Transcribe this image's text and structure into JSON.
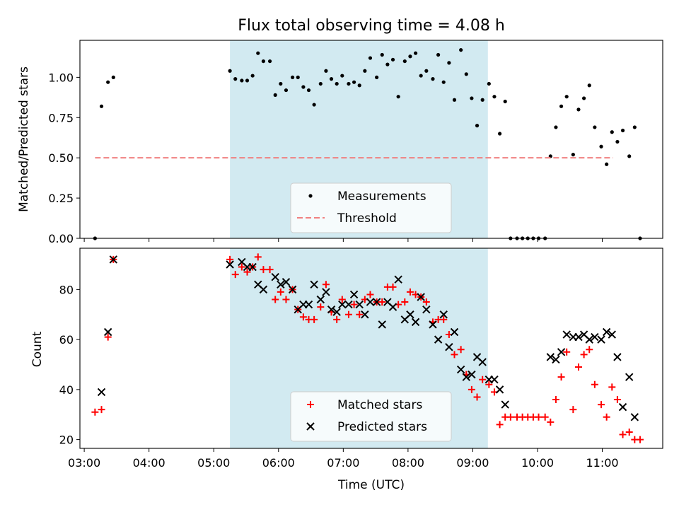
{
  "chart_data": [
    {
      "type": "scatter",
      "title": "Flux total observing time = 4.08 h",
      "xlabel": "",
      "ylabel": "Matched/Predicted stars",
      "ylim": [
        0.0,
        1.23
      ],
      "yticks": [
        "0.00",
        "0.25",
        "0.50",
        "0.75",
        "1.00"
      ],
      "shaded_span": {
        "start": "05:15",
        "end": "09:14",
        "color": "#add8e6"
      },
      "legend": {
        "position": "lower center",
        "entries": [
          "Measurements",
          "Threshold"
        ]
      },
      "series": [
        {
          "name": "Measurements",
          "marker": "dot",
          "color": "#000000",
          "points": [
            [
              "03:10",
              0.0
            ],
            [
              "03:16",
              0.82
            ],
            [
              "03:22",
              0.97
            ],
            [
              "03:27",
              1.0
            ],
            [
              "05:15",
              1.04
            ],
            [
              "05:20",
              0.99
            ],
            [
              "05:26",
              0.98
            ],
            [
              "05:31",
              0.98
            ],
            [
              "05:36",
              1.01
            ],
            [
              "05:41",
              1.15
            ],
            [
              "05:46",
              1.1
            ],
            [
              "05:52",
              1.1
            ],
            [
              "05:57",
              0.89
            ],
            [
              "06:02",
              0.96
            ],
            [
              "06:07",
              0.92
            ],
            [
              "06:13",
              1.0
            ],
            [
              "06:18",
              1.0
            ],
            [
              "06:23",
              0.94
            ],
            [
              "06:28",
              0.92
            ],
            [
              "06:33",
              0.83
            ],
            [
              "06:39",
              0.96
            ],
            [
              "06:44",
              1.04
            ],
            [
              "06:49",
              0.99
            ],
            [
              "06:54",
              0.96
            ],
            [
              "06:59",
              1.01
            ],
            [
              "07:05",
              0.96
            ],
            [
              "07:10",
              0.97
            ],
            [
              "07:15",
              0.95
            ],
            [
              "07:20",
              1.04
            ],
            [
              "07:25",
              1.12
            ],
            [
              "07:31",
              1.0
            ],
            [
              "07:36",
              1.14
            ],
            [
              "07:41",
              1.08
            ],
            [
              "07:46",
              1.11
            ],
            [
              "07:51",
              0.88
            ],
            [
              "07:57",
              1.1
            ],
            [
              "08:02",
              1.13
            ],
            [
              "08:07",
              1.15
            ],
            [
              "08:12",
              1.01
            ],
            [
              "08:17",
              1.04
            ],
            [
              "08:23",
              0.99
            ],
            [
              "08:28",
              1.14
            ],
            [
              "08:33",
              0.97
            ],
            [
              "08:38",
              1.09
            ],
            [
              "08:43",
              0.86
            ],
            [
              "08:49",
              1.17
            ],
            [
              "08:54",
              1.02
            ],
            [
              "08:59",
              0.87
            ],
            [
              "09:04",
              0.7
            ],
            [
              "09:09",
              0.86
            ],
            [
              "09:15",
              0.96
            ],
            [
              "09:20",
              0.88
            ],
            [
              "09:25",
              0.65
            ],
            [
              "09:30",
              0.85
            ],
            [
              "09:35",
              0.0
            ],
            [
              "09:41",
              0.0
            ],
            [
              "09:46",
              0.0
            ],
            [
              "09:51",
              0.0
            ],
            [
              "09:56",
              0.0
            ],
            [
              "10:01",
              0.0
            ],
            [
              "10:07",
              0.0
            ],
            [
              "10:12",
              0.51
            ],
            [
              "10:17",
              0.69
            ],
            [
              "10:22",
              0.82
            ],
            [
              "10:27",
              0.88
            ],
            [
              "10:33",
              0.52
            ],
            [
              "10:38",
              0.8
            ],
            [
              "10:43",
              0.87
            ],
            [
              "10:48",
              0.95
            ],
            [
              "10:53",
              0.69
            ],
            [
              "10:59",
              0.57
            ],
            [
              "11:04",
              0.46
            ],
            [
              "11:09",
              0.66
            ],
            [
              "11:14",
              0.6
            ],
            [
              "11:19",
              0.67
            ],
            [
              "11:25",
              0.51
            ],
            [
              "11:30",
              0.69
            ],
            [
              "11:35",
              0.0
            ]
          ]
        },
        {
          "name": "Threshold",
          "marker": "dashed-line",
          "color": "#f08080",
          "points": [
            [
              "03:10",
              0.5
            ],
            [
              "11:10",
              0.5
            ]
          ]
        }
      ]
    },
    {
      "type": "scatter",
      "title": "",
      "xlabel": "Time (UTC)",
      "ylabel": "Count",
      "ylim": [
        16.5,
        96.5
      ],
      "yticks": [
        "20",
        "40",
        "60",
        "80"
      ],
      "xticks": [
        "03:00",
        "04:00",
        "05:00",
        "06:00",
        "07:00",
        "08:00",
        "09:00",
        "10:00",
        "11:00"
      ],
      "xlim": [
        "02:56",
        "11:56"
      ],
      "shaded_span": {
        "start": "05:15",
        "end": "09:14",
        "color": "#add8e6"
      },
      "legend": {
        "position": "lower center",
        "entries": [
          "Matched stars",
          "Predicted stars"
        ]
      },
      "series": [
        {
          "name": "Matched stars",
          "marker": "plus",
          "color": "#ff0000",
          "points": [
            [
              "03:10",
              31
            ],
            [
              "03:16",
              32
            ],
            [
              "03:22",
              61
            ],
            [
              "03:27",
              92
            ],
            [
              "05:15",
              92
            ],
            [
              "05:20",
              86
            ],
            [
              "05:26",
              89
            ],
            [
              "05:31",
              87
            ],
            [
              "05:36",
              89
            ],
            [
              "05:41",
              93
            ],
            [
              "05:46",
              88
            ],
            [
              "05:52",
              88
            ],
            [
              "05:57",
              76
            ],
            [
              "06:02",
              79
            ],
            [
              "06:07",
              76
            ],
            [
              "06:13",
              80
            ],
            [
              "06:18",
              72
            ],
            [
              "06:23",
              69
            ],
            [
              "06:28",
              68
            ],
            [
              "06:33",
              68
            ],
            [
              "06:39",
              73
            ],
            [
              "06:44",
              82
            ],
            [
              "06:49",
              71
            ],
            [
              "06:54",
              68
            ],
            [
              "06:59",
              76
            ],
            [
              "07:05",
              70
            ],
            [
              "07:10",
              74
            ],
            [
              "07:15",
              70
            ],
            [
              "07:20",
              76
            ],
            [
              "07:25",
              78
            ],
            [
              "07:31",
              75
            ],
            [
              "07:36",
              75
            ],
            [
              "07:41",
              81
            ],
            [
              "07:46",
              81
            ],
            [
              "07:51",
              74
            ],
            [
              "07:57",
              75
            ],
            [
              "08:02",
              79
            ],
            [
              "08:07",
              78
            ],
            [
              "08:12",
              77
            ],
            [
              "08:17",
              75
            ],
            [
              "08:23",
              67
            ],
            [
              "08:28",
              68
            ],
            [
              "08:33",
              68
            ],
            [
              "08:38",
              62
            ],
            [
              "08:43",
              54
            ],
            [
              "08:49",
              56
            ],
            [
              "08:54",
              46
            ],
            [
              "08:59",
              40
            ],
            [
              "09:04",
              37
            ],
            [
              "09:09",
              44
            ],
            [
              "09:15",
              42
            ],
            [
              "09:20",
              39
            ],
            [
              "09:25",
              26
            ],
            [
              "09:30",
              29
            ],
            [
              "09:35",
              29
            ],
            [
              "09:41",
              29
            ],
            [
              "09:46",
              29
            ],
            [
              "09:51",
              29
            ],
            [
              "09:56",
              29
            ],
            [
              "10:01",
              29
            ],
            [
              "10:07",
              29
            ],
            [
              "10:12",
              27
            ],
            [
              "10:17",
              36
            ],
            [
              "10:22",
              45
            ],
            [
              "10:27",
              55
            ],
            [
              "10:33",
              32
            ],
            [
              "10:38",
              49
            ],
            [
              "10:43",
              54
            ],
            [
              "10:48",
              56
            ],
            [
              "10:53",
              42
            ],
            [
              "10:59",
              34
            ],
            [
              "11:04",
              29
            ],
            [
              "11:09",
              41
            ],
            [
              "11:14",
              36
            ],
            [
              "11:19",
              22
            ],
            [
              "11:25",
              23
            ],
            [
              "11:30",
              20
            ],
            [
              "11:35",
              20
            ]
          ]
        },
        {
          "name": "Predicted stars",
          "marker": "x",
          "color": "#000000",
          "points": [
            [
              "03:16",
              39
            ],
            [
              "03:22",
              63
            ],
            [
              "03:27",
              92
            ],
            [
              "05:15",
              90
            ],
            [
              "05:26",
              91
            ],
            [
              "05:31",
              89
            ],
            [
              "05:36",
              89
            ],
            [
              "05:41",
              82
            ],
            [
              "05:46",
              80
            ],
            [
              "05:57",
              85
            ],
            [
              "06:02",
              82
            ],
            [
              "06:07",
              83
            ],
            [
              "06:13",
              80
            ],
            [
              "06:18",
              72
            ],
            [
              "06:23",
              74
            ],
            [
              "06:28",
              74
            ],
            [
              "06:33",
              82
            ],
            [
              "06:39",
              76
            ],
            [
              "06:44",
              79
            ],
            [
              "06:49",
              72
            ],
            [
              "06:54",
              71
            ],
            [
              "06:59",
              74
            ],
            [
              "07:05",
              74
            ],
            [
              "07:10",
              78
            ],
            [
              "07:15",
              74
            ],
            [
              "07:20",
              70
            ],
            [
              "07:25",
              75
            ],
            [
              "07:31",
              75
            ],
            [
              "07:36",
              66
            ],
            [
              "07:41",
              75
            ],
            [
              "07:46",
              73
            ],
            [
              "07:51",
              84
            ],
            [
              "07:57",
              68
            ],
            [
              "08:02",
              70
            ],
            [
              "08:07",
              67
            ],
            [
              "08:12",
              77
            ],
            [
              "08:17",
              72
            ],
            [
              "08:23",
              66
            ],
            [
              "08:28",
              60
            ],
            [
              "08:33",
              70
            ],
            [
              "08:38",
              57
            ],
            [
              "08:43",
              63
            ],
            [
              "08:49",
              48
            ],
            [
              "08:54",
              45
            ],
            [
              "08:59",
              46
            ],
            [
              "09:04",
              53
            ],
            [
              "09:09",
              51
            ],
            [
              "09:15",
              44
            ],
            [
              "09:20",
              44
            ],
            [
              "09:25",
              40
            ],
            [
              "09:30",
              34
            ],
            [
              "10:12",
              53
            ],
            [
              "10:17",
              52
            ],
            [
              "10:22",
              55
            ],
            [
              "10:27",
              62
            ],
            [
              "10:33",
              61
            ],
            [
              "10:38",
              61
            ],
            [
              "10:43",
              62
            ],
            [
              "10:48",
              60
            ],
            [
              "10:53",
              61
            ],
            [
              "10:59",
              60
            ],
            [
              "11:04",
              63
            ],
            [
              "11:09",
              62
            ],
            [
              "11:14",
              53
            ],
            [
              "11:19",
              33
            ],
            [
              "11:25",
              45
            ],
            [
              "11:30",
              29
            ]
          ]
        }
      ]
    }
  ]
}
